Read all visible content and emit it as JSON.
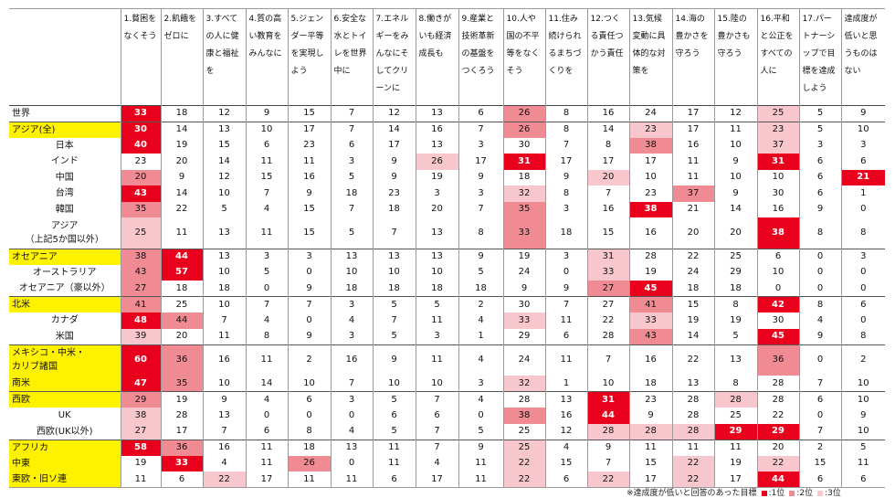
{
  "chart_data": {
    "type": "table",
    "columns": [
      "1.\n貧困をなくそう",
      "2.\n飢餓をゼロに",
      "3.すべての人に健康と福祉を",
      "4.質の高い教育をみんなに",
      "5.ジェンダー平等を実現しよう",
      "6.安全な水とトイレを世界中に",
      "7.エネルギーをみんなにそしてクリーンに",
      "8.働きがいも経済成長も",
      "9.産業と技術革新の基盤をつくろう",
      "10.人や国の不平等をなくそう",
      "11.住み続けられるまちづくりを",
      "12.つくる責任つかう責任",
      "13.気候変動に具体的な対策を",
      "14.海の豊かさを守ろう",
      "15.陸の豊かさも守ろう",
      "16.平和と公正をすべての人に",
      "17.パートナーシップで目標を達成しよう",
      "達成度が低いと思うものはない"
    ],
    "rows": [
      {
        "label": "世界",
        "indent": false,
        "region": false,
        "values": [
          33,
          18,
          12,
          9,
          15,
          7,
          12,
          13,
          6,
          26,
          8,
          16,
          24,
          17,
          12,
          25,
          5,
          9
        ],
        "ranks": [
          1,
          0,
          0,
          0,
          0,
          0,
          0,
          0,
          0,
          2,
          0,
          0,
          0,
          0,
          0,
          3,
          0,
          0
        ]
      },
      {
        "label": "アジア(全)",
        "indent": false,
        "region": true,
        "values": [
          30,
          14,
          13,
          10,
          17,
          7,
          14,
          16,
          7,
          26,
          8,
          14,
          23,
          17,
          11,
          23,
          5,
          10
        ],
        "ranks": [
          1,
          0,
          0,
          0,
          0,
          0,
          0,
          0,
          0,
          2,
          0,
          0,
          3,
          0,
          0,
          3,
          0,
          0
        ]
      },
      {
        "label": "日本",
        "indent": true,
        "region": false,
        "values": [
          40,
          19,
          15,
          6,
          23,
          6,
          17,
          13,
          3,
          30,
          7,
          8,
          38,
          16,
          10,
          37,
          3,
          3
        ],
        "ranks": [
          1,
          0,
          0,
          0,
          0,
          0,
          0,
          0,
          0,
          0,
          0,
          0,
          2,
          0,
          0,
          3,
          0,
          0
        ]
      },
      {
        "label": "インド",
        "indent": true,
        "region": false,
        "values": [
          23,
          20,
          14,
          11,
          11,
          3,
          9,
          26,
          17,
          31,
          17,
          17,
          17,
          11,
          9,
          31,
          6,
          6
        ],
        "ranks": [
          0,
          0,
          0,
          0,
          0,
          0,
          0,
          3,
          0,
          1,
          0,
          0,
          0,
          0,
          0,
          1,
          0,
          0
        ]
      },
      {
        "label": "中国",
        "indent": true,
        "region": false,
        "values": [
          20,
          9,
          12,
          15,
          16,
          5,
          9,
          19,
          9,
          18,
          9,
          20,
          10,
          11,
          10,
          10,
          6,
          21
        ],
        "ranks": [
          2,
          0,
          0,
          0,
          0,
          0,
          0,
          0,
          0,
          0,
          0,
          3,
          0,
          0,
          0,
          0,
          0,
          1
        ]
      },
      {
        "label": "台湾",
        "indent": true,
        "region": false,
        "values": [
          43,
          14,
          10,
          7,
          9,
          18,
          23,
          3,
          3,
          32,
          8,
          7,
          23,
          37,
          9,
          30,
          6,
          1
        ],
        "ranks": [
          1,
          0,
          0,
          0,
          0,
          0,
          0,
          0,
          0,
          3,
          0,
          0,
          0,
          2,
          0,
          0,
          0,
          0
        ]
      },
      {
        "label": "韓国",
        "indent": true,
        "region": false,
        "values": [
          35,
          22,
          5,
          4,
          15,
          7,
          18,
          20,
          7,
          35,
          3,
          16,
          38,
          21,
          14,
          16,
          9,
          0
        ],
        "ranks": [
          2,
          0,
          0,
          0,
          0,
          0,
          0,
          0,
          0,
          2,
          0,
          0,
          1,
          0,
          0,
          0,
          0,
          0
        ]
      },
      {
        "label": "アジア\n（上記5か国以外）",
        "indent": true,
        "region": false,
        "values": [
          25,
          11,
          13,
          11,
          15,
          5,
          7,
          13,
          8,
          33,
          18,
          15,
          16,
          20,
          20,
          38,
          8,
          8
        ],
        "ranks": [
          3,
          0,
          0,
          0,
          0,
          0,
          0,
          0,
          0,
          2,
          0,
          0,
          0,
          0,
          0,
          1,
          0,
          0
        ]
      },
      {
        "label": "オセアニア",
        "indent": false,
        "region": true,
        "values": [
          38,
          44,
          13,
          3,
          3,
          13,
          13,
          13,
          9,
          19,
          3,
          31,
          28,
          22,
          25,
          6,
          0,
          3
        ],
        "ranks": [
          2,
          1,
          0,
          0,
          0,
          0,
          0,
          0,
          0,
          0,
          0,
          3,
          0,
          0,
          0,
          0,
          0,
          0
        ]
      },
      {
        "label": "オーストラリア",
        "indent": true,
        "region": false,
        "values": [
          43,
          57,
          10,
          5,
          0,
          10,
          10,
          10,
          5,
          24,
          0,
          33,
          19,
          24,
          29,
          10,
          0,
          0
        ],
        "ranks": [
          2,
          1,
          0,
          0,
          0,
          0,
          0,
          0,
          0,
          0,
          0,
          3,
          0,
          0,
          0,
          0,
          0,
          0
        ]
      },
      {
        "label": "オセアニア（豪以外）",
        "indent": true,
        "region": false,
        "values": [
          27,
          18,
          18,
          0,
          9,
          18,
          18,
          18,
          18,
          9,
          9,
          27,
          45,
          18,
          18,
          0,
          0,
          0
        ],
        "ranks": [
          2,
          0,
          0,
          0,
          0,
          0,
          0,
          0,
          0,
          0,
          0,
          2,
          1,
          0,
          0,
          0,
          0,
          0
        ]
      },
      {
        "label": "北米",
        "indent": false,
        "region": true,
        "values": [
          41,
          25,
          10,
          7,
          7,
          3,
          5,
          5,
          2,
          30,
          7,
          27,
          41,
          15,
          8,
          42,
          8,
          6
        ],
        "ranks": [
          2,
          0,
          0,
          0,
          0,
          0,
          0,
          0,
          0,
          0,
          0,
          0,
          2,
          0,
          0,
          1,
          0,
          0
        ]
      },
      {
        "label": "カナダ",
        "indent": true,
        "region": false,
        "values": [
          48,
          44,
          7,
          4,
          0,
          4,
          7,
          11,
          4,
          33,
          11,
          22,
          33,
          19,
          19,
          30,
          4,
          0
        ],
        "ranks": [
          1,
          2,
          0,
          0,
          0,
          0,
          0,
          0,
          0,
          3,
          0,
          0,
          3,
          0,
          0,
          0,
          0,
          0
        ]
      },
      {
        "label": "米国",
        "indent": true,
        "region": false,
        "values": [
          39,
          20,
          11,
          8,
          9,
          3,
          5,
          3,
          1,
          29,
          6,
          28,
          43,
          14,
          5,
          45,
          9,
          8
        ],
        "ranks": [
          3,
          0,
          0,
          0,
          0,
          0,
          0,
          0,
          0,
          0,
          0,
          0,
          2,
          0,
          0,
          1,
          0,
          0
        ]
      },
      {
        "label": "メキシコ・中米・\nカリブ諸国",
        "indent": false,
        "region": true,
        "values": [
          60,
          36,
          16,
          11,
          2,
          16,
          9,
          11,
          4,
          24,
          11,
          7,
          16,
          22,
          13,
          36,
          0,
          2
        ],
        "ranks": [
          1,
          2,
          0,
          0,
          0,
          0,
          0,
          0,
          0,
          0,
          0,
          0,
          0,
          0,
          0,
          2,
          0,
          0
        ]
      },
      {
        "label": "南米",
        "indent": false,
        "region": true,
        "values": [
          47,
          35,
          10,
          14,
          10,
          7,
          10,
          10,
          3,
          32,
          1,
          10,
          18,
          13,
          8,
          28,
          7,
          10
        ],
        "ranks": [
          1,
          2,
          0,
          0,
          0,
          0,
          0,
          0,
          0,
          3,
          0,
          0,
          0,
          0,
          0,
          0,
          0,
          0
        ]
      },
      {
        "label": "西欧",
        "indent": false,
        "region": true,
        "values": [
          29,
          19,
          9,
          4,
          6,
          3,
          5,
          7,
          4,
          28,
          13,
          31,
          23,
          28,
          28,
          28,
          6,
          10
        ],
        "ranks": [
          2,
          0,
          0,
          0,
          0,
          0,
          0,
          0,
          0,
          0,
          0,
          1,
          0,
          0,
          3,
          0,
          0,
          0
        ]
      },
      {
        "label": "UK",
        "indent": true,
        "region": false,
        "values": [
          38,
          28,
          13,
          0,
          0,
          0,
          6,
          6,
          0,
          38,
          16,
          44,
          9,
          28,
          25,
          22,
          0,
          9
        ],
        "ranks": [
          3,
          0,
          0,
          0,
          0,
          0,
          0,
          0,
          0,
          2,
          0,
          1,
          0,
          0,
          0,
          0,
          0,
          0
        ]
      },
      {
        "label": "西欧(UK以外)",
        "indent": true,
        "region": false,
        "values": [
          27,
          17,
          7,
          6,
          8,
          4,
          5,
          7,
          5,
          25,
          12,
          28,
          28,
          28,
          29,
          29,
          7,
          10
        ],
        "ranks": [
          3,
          0,
          0,
          0,
          0,
          0,
          0,
          0,
          0,
          0,
          0,
          3,
          3,
          3,
          1,
          1,
          0,
          0
        ]
      },
      {
        "label": "アフリカ",
        "indent": false,
        "region": true,
        "values": [
          58,
          36,
          16,
          11,
          18,
          13,
          11,
          7,
          9,
          25,
          4,
          9,
          11,
          11,
          11,
          20,
          2,
          5
        ],
        "ranks": [
          1,
          2,
          0,
          0,
          0,
          0,
          0,
          0,
          0,
          3,
          0,
          0,
          0,
          0,
          0,
          0,
          0,
          0
        ]
      },
      {
        "label": "中東",
        "indent": false,
        "region": true,
        "values": [
          19,
          33,
          4,
          11,
          26,
          0,
          11,
          4,
          11,
          22,
          15,
          7,
          15,
          22,
          19,
          22,
          15,
          11
        ],
        "ranks": [
          0,
          1,
          0,
          0,
          2,
          0,
          0,
          0,
          0,
          3,
          0,
          0,
          0,
          3,
          0,
          3,
          0,
          0
        ]
      },
      {
        "label": "東欧・旧ソ連",
        "indent": false,
        "region": true,
        "values": [
          11,
          6,
          22,
          17,
          11,
          11,
          6,
          17,
          11,
          22,
          6,
          22,
          17,
          22,
          17,
          44,
          6,
          6
        ],
        "ranks": [
          0,
          0,
          3,
          0,
          0,
          0,
          0,
          0,
          0,
          3,
          0,
          3,
          0,
          3,
          0,
          1,
          0,
          0
        ]
      }
    ],
    "colors": {
      "rank1": "#e8001c",
      "rank2": "#f08a93",
      "rank3": "#f8c7cd",
      "region_highlight": "#fff200"
    },
    "legend": {
      "note": "※達成度が低いと回答のあった目標",
      "items": [
        ":1位",
        ":2位",
        ":3位"
      ]
    }
  }
}
